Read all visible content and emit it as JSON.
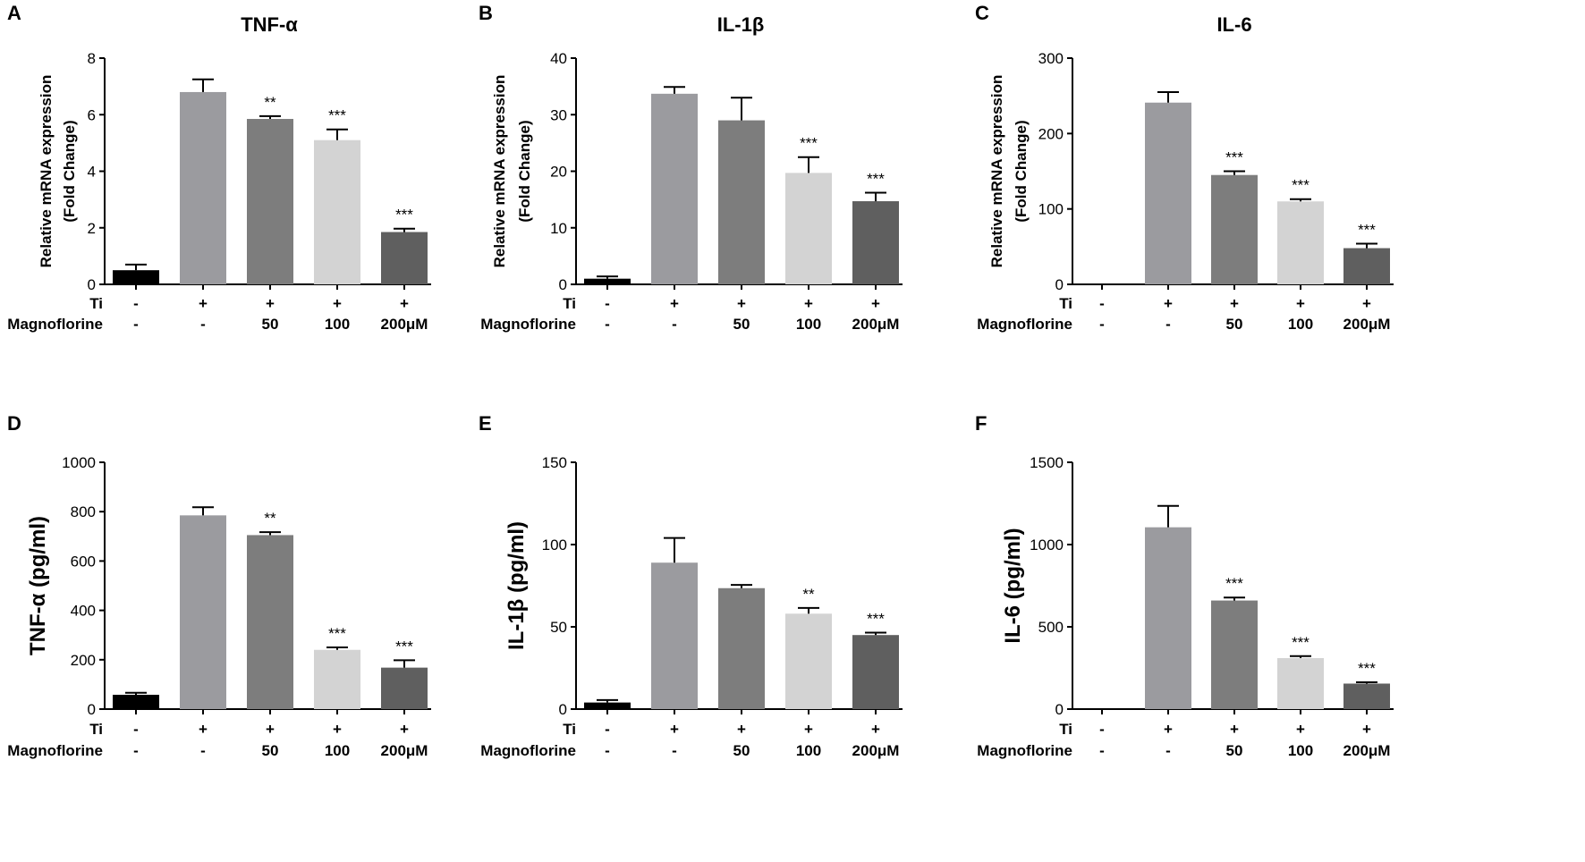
{
  "chart_data": [
    {
      "type": "bar",
      "letter": "A",
      "title": "TNF-α",
      "ylabel": [
        "Relative mRNA expression",
        "(Fold Change)"
      ],
      "ylim": [
        0,
        8
      ],
      "yticks": [
        "0",
        "2",
        "4",
        "6",
        "8"
      ],
      "values": [
        0.5,
        6.8,
        5.85,
        5.1,
        1.85
      ],
      "errors": [
        0.2,
        0.45,
        0.1,
        0.38,
        0.12
      ],
      "significance": [
        "",
        "",
        "**",
        "***",
        "***"
      ]
    },
    {
      "type": "bar",
      "letter": "B",
      "title": "IL-1β",
      "ylabel": [
        "Relative mRNA expression",
        "(Fold Change)"
      ],
      "ylim": [
        0,
        40
      ],
      "yticks": [
        "0",
        "10",
        "20",
        "30",
        "40"
      ],
      "values": [
        1.0,
        33.7,
        29.0,
        19.7,
        14.7
      ],
      "errors": [
        0.4,
        1.2,
        4.0,
        2.8,
        1.5
      ],
      "significance": [
        "",
        "",
        "",
        "***",
        "***"
      ]
    },
    {
      "type": "bar",
      "letter": "C",
      "title": "IL-6",
      "ylabel": [
        "Relative mRNA expression",
        "(Fold Change)"
      ],
      "ylim": [
        0,
        300
      ],
      "yticks": [
        "0",
        "100",
        "200",
        "300"
      ],
      "values": [
        1,
        241,
        145,
        110,
        48
      ],
      "errors": [
        0,
        14,
        5,
        3,
        6
      ],
      "significance": [
        "",
        "",
        "***",
        "***",
        "***"
      ]
    },
    {
      "type": "bar",
      "letter": "D",
      "title": "",
      "ylabel": [
        "TNF-α (pg/ml)"
      ],
      "ylim": [
        0,
        1000
      ],
      "yticks": [
        "0",
        "200",
        "400",
        "600",
        "800",
        "1000"
      ],
      "values": [
        58,
        785,
        705,
        240,
        168
      ],
      "errors": [
        8,
        33,
        12,
        10,
        30
      ],
      "significance": [
        "",
        "",
        "**",
        "***",
        "***"
      ]
    },
    {
      "type": "bar",
      "letter": "E",
      "title": "",
      "ylabel": [
        "IL-1β (pg/ml)"
      ],
      "ylim": [
        0,
        150
      ],
      "yticks": [
        "0",
        "50",
        "100",
        "150"
      ],
      "values": [
        4,
        89,
        73.5,
        58,
        45
      ],
      "errors": [
        1.5,
        15,
        2,
        3.5,
        1.5
      ],
      "significance": [
        "",
        "",
        "",
        "**",
        "***"
      ]
    },
    {
      "type": "bar",
      "letter": "F",
      "title": "",
      "ylabel": [
        "IL-6 (pg/ml)"
      ],
      "ylim": [
        0,
        1500
      ],
      "yticks": [
        "0",
        "500",
        "1000",
        "1500"
      ],
      "values": [
        5,
        1105,
        660,
        310,
        155
      ],
      "errors": [
        0,
        130,
        18,
        12,
        8
      ],
      "significance": [
        "",
        "",
        "***",
        "***",
        "***"
      ]
    }
  ],
  "conditions": {
    "ti_label": "Ti",
    "ti": [
      "-",
      "+",
      "+",
      "+",
      "+"
    ],
    "magnoflorine_label": "Magnoflorine",
    "magnoflorine": [
      "-",
      "-",
      "50",
      "100",
      "200μM"
    ]
  },
  "colors": {
    "bars": [
      "#000000",
      "#9b9b9f",
      "#7d7d7d",
      "#d3d3d3",
      "#5f5f5f"
    ],
    "axis": "#000000"
  }
}
